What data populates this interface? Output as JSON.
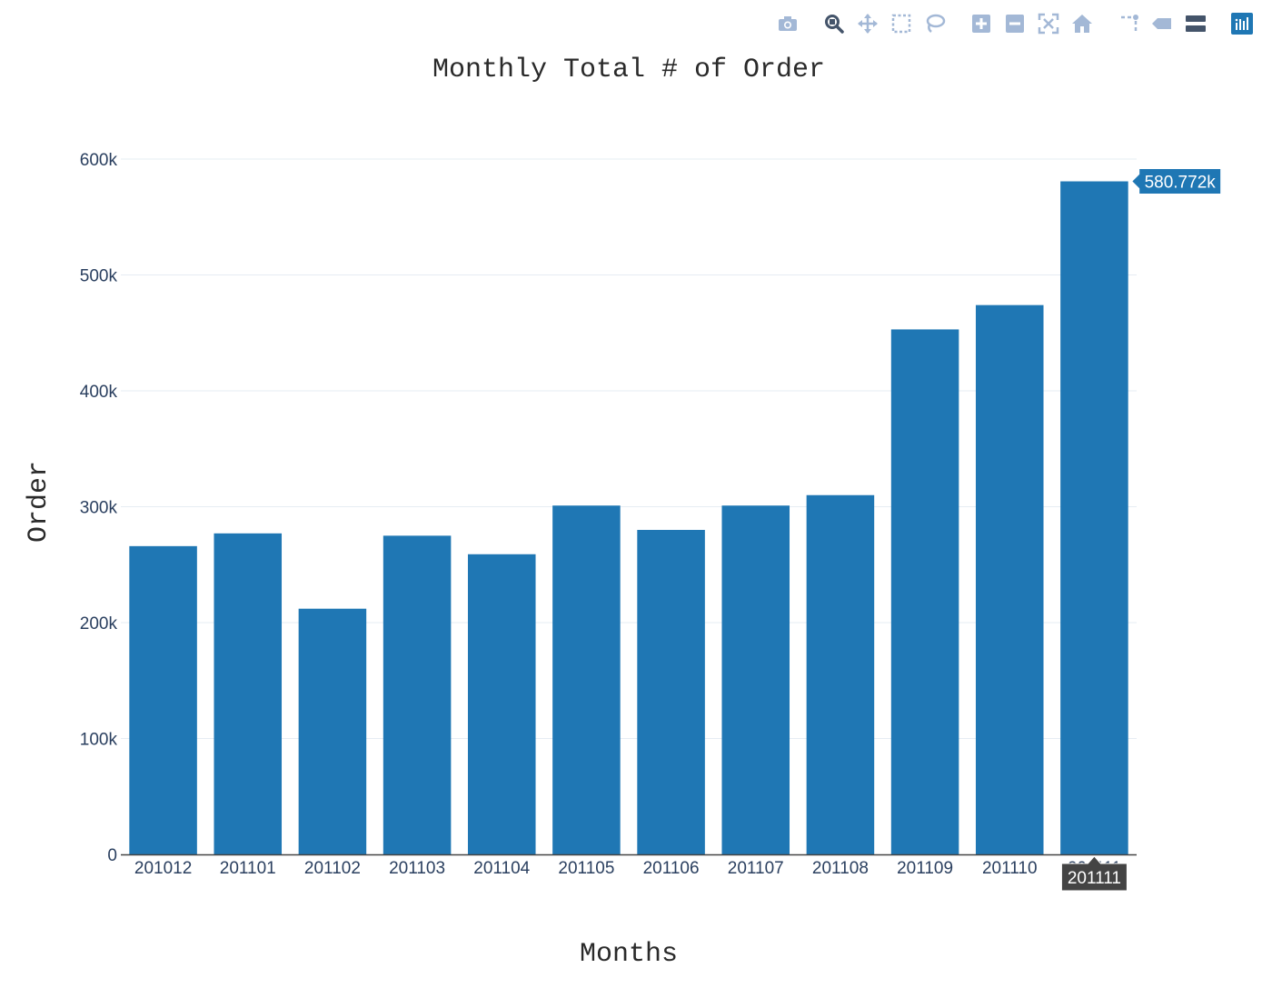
{
  "toolbar": {
    "buttons": [
      {
        "icon": "camera-icon",
        "label": "Download plot as a png"
      },
      {
        "icon": "zoom-icon",
        "label": "Zoom"
      },
      {
        "icon": "pan-icon",
        "label": "Pan"
      },
      {
        "icon": "box-select-icon",
        "label": "Box Select"
      },
      {
        "icon": "lasso-select-icon",
        "label": "Lasso Select"
      },
      {
        "icon": "zoom-in-icon",
        "label": "Zoom in"
      },
      {
        "icon": "zoom-out-icon",
        "label": "Zoom out"
      },
      {
        "icon": "autoscale-icon",
        "label": "Autoscale"
      },
      {
        "icon": "reset-axes-icon",
        "label": "Reset axes"
      },
      {
        "icon": "spike-lines-icon",
        "label": "Toggle Spike Lines"
      },
      {
        "icon": "hover-closest-icon",
        "label": "Show closest data on hover"
      },
      {
        "icon": "hover-compare-icon",
        "label": "Compare data on hover"
      },
      {
        "icon": "plotly-logo-icon",
        "label": "Produced with Plotly"
      }
    ],
    "colors": {
      "icon": "#a3b8d6",
      "active": "#44546a",
      "logo": "#1f77b4"
    }
  },
  "chart_data": {
    "type": "bar",
    "title": "Monthly Total # of Order",
    "xlabel": "Months",
    "ylabel": "Order",
    "categories": [
      "201012",
      "201101",
      "201102",
      "201103",
      "201104",
      "201105",
      "201106",
      "201107",
      "201108",
      "201109",
      "201110",
      "201111"
    ],
    "values": [
      266000,
      277000,
      212000,
      275000,
      259000,
      301000,
      280000,
      301000,
      310000,
      453000,
      474000,
      580772
    ],
    "ylim": [
      0,
      600000
    ],
    "yticks": [
      0,
      100000,
      200000,
      300000,
      400000,
      500000,
      600000
    ],
    "ytick_labels": [
      "0",
      "100k",
      "200k",
      "300k",
      "400k",
      "500k",
      "600k"
    ],
    "bar_color": "#1f77b4",
    "grid": true,
    "hover": {
      "category": "201111",
      "value_label": "580.772k",
      "x_label": "201111"
    }
  }
}
